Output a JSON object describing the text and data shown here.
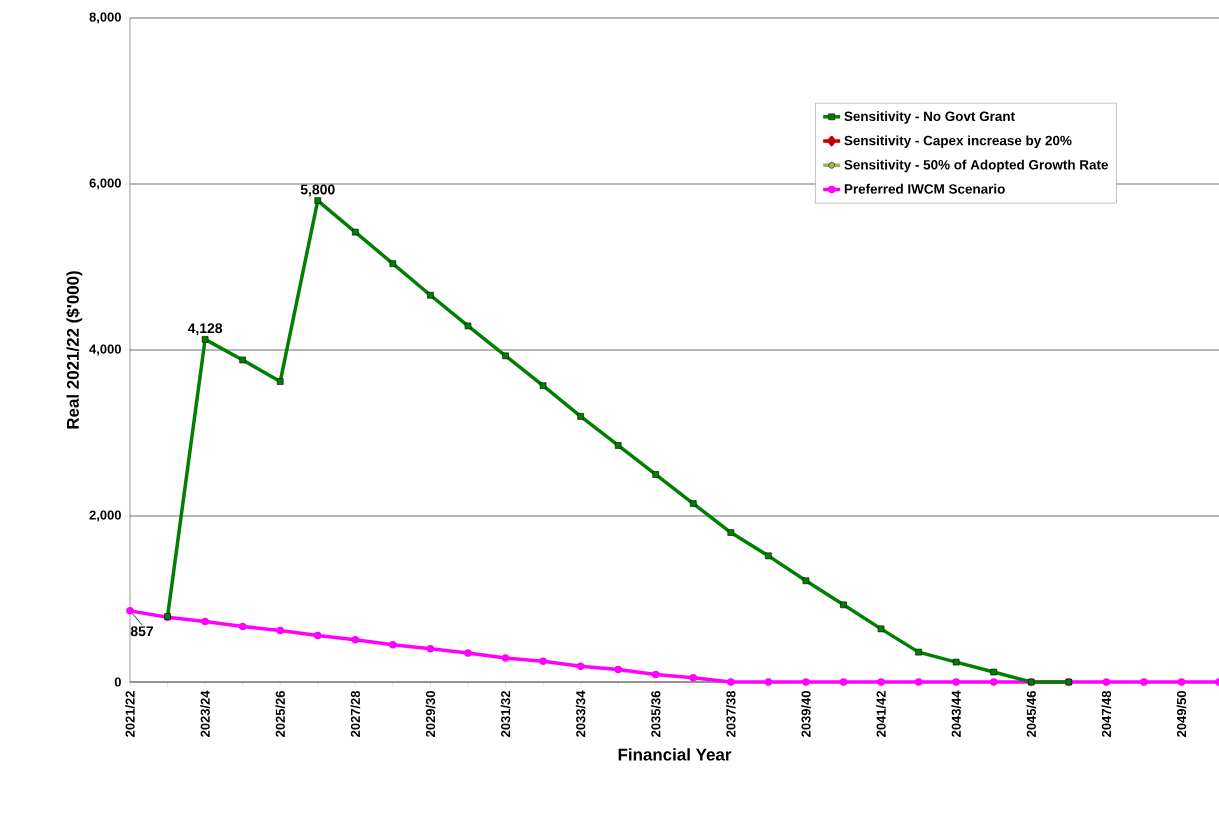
{
  "chart_data": {
    "type": "line",
    "xlabel": "Financial Year",
    "ylabel": "Real 2021/22 ($'000)",
    "categories": [
      "2021/22",
      null,
      "2023/24",
      null,
      "2025/26",
      null,
      "2027/28",
      null,
      "2029/30",
      null,
      "2031/32",
      null,
      "2033/34",
      null,
      "2035/36",
      null,
      "2037/38",
      null,
      "2039/40",
      null,
      "2041/42",
      null,
      "2043/44",
      null,
      "2045/46",
      null,
      "2047/48",
      null,
      "2049/50",
      null
    ],
    "series": [
      {
        "name": "Sensitivity - No Govt Grant",
        "color": "#008000",
        "marker": "square",
        "values": [
          null,
          790,
          4128,
          3880,
          3620,
          5800,
          5420,
          5040,
          4660,
          4290,
          3930,
          3570,
          3200,
          2850,
          2500,
          2150,
          1800,
          1520,
          1220,
          930,
          640,
          360,
          240,
          120,
          0,
          0,
          null,
          null,
          null,
          null
        ],
        "value_labels": [
          null,
          null,
          "4,128",
          null,
          null,
          "5,800",
          null,
          null,
          null,
          null,
          null,
          null,
          null,
          null,
          null,
          null,
          null,
          null,
          null,
          null,
          null,
          null,
          null,
          null,
          null,
          null,
          null,
          null,
          null,
          null
        ]
      },
      {
        "name": "Sensitivity - Capex increase by 20%",
        "color": "#c00000",
        "marker": "diamond",
        "values": [
          null,
          null,
          null,
          null,
          null,
          null,
          null,
          null,
          null,
          null,
          null,
          null,
          null,
          null,
          null,
          null,
          null,
          null,
          null,
          null,
          null,
          null,
          null,
          null,
          null,
          null,
          null,
          null,
          null,
          null
        ]
      },
      {
        "name": "Sensitivity - 50% of Adopted Growth Rate",
        "color": "#9bbb59",
        "marker": "circle",
        "values": [
          null,
          null,
          null,
          null,
          null,
          null,
          null,
          null,
          null,
          null,
          null,
          null,
          null,
          null,
          null,
          null,
          null,
          null,
          null,
          null,
          null,
          null,
          null,
          null,
          null,
          null,
          null,
          null,
          null,
          null
        ]
      },
      {
        "name": "Preferred IWCM Scenario",
        "color": "#ff00ff",
        "marker": "circle",
        "values": [
          857,
          780,
          730,
          670,
          620,
          560,
          510,
          450,
          400,
          350,
          290,
          250,
          190,
          150,
          90,
          50,
          0,
          0,
          0,
          0,
          0,
          0,
          0,
          0,
          0,
          0,
          0,
          0,
          0,
          0
        ],
        "value_labels": [
          "857",
          null,
          null,
          null,
          null,
          null,
          null,
          null,
          null,
          null,
          null,
          null,
          null,
          null,
          null,
          null,
          null,
          null,
          null,
          null,
          null,
          null,
          null,
          null,
          null,
          null,
          null,
          null,
          null,
          null
        ]
      }
    ],
    "ylim": [
      0,
      8000
    ],
    "yticks": [
      {
        "value": 0,
        "label": "0"
      },
      {
        "value": 2000,
        "label": "2,000"
      },
      {
        "value": 4000,
        "label": "4,000"
      },
      {
        "value": 6000,
        "label": "6,000"
      },
      {
        "value": 8000,
        "label": "8,000"
      }
    ],
    "grid": "y",
    "legend": "top right",
    "line_style": "solid"
  }
}
